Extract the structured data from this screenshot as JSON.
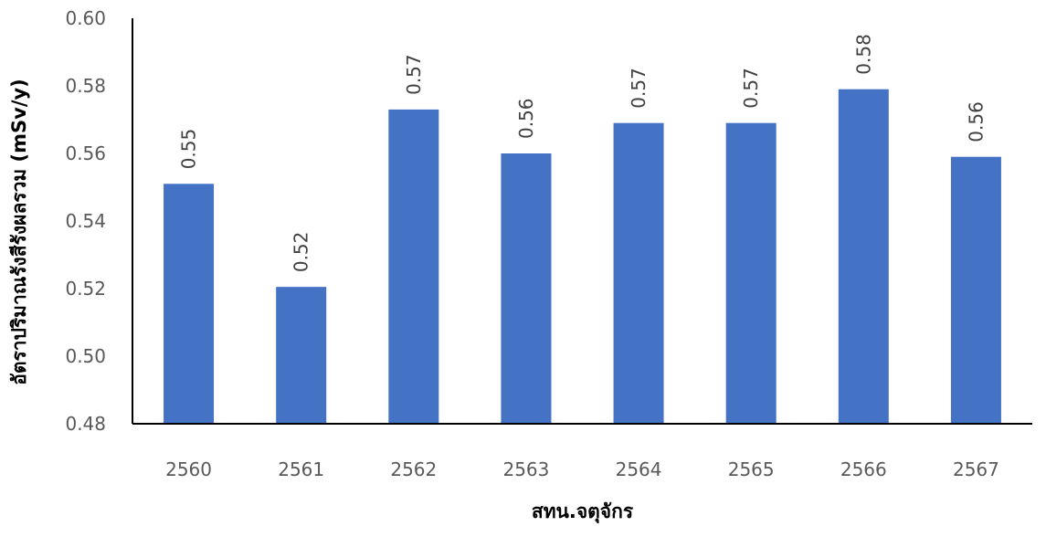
{
  "chart_data": {
    "type": "bar",
    "categories": [
      "2560",
      "2561",
      "2562",
      "2563",
      "2564",
      "2565",
      "2566",
      "2567"
    ],
    "values": [
      0.551,
      0.5205,
      0.573,
      0.56,
      0.569,
      0.569,
      0.579,
      0.559
    ],
    "data_labels": [
      "0.55",
      "0.52",
      "0.57",
      "0.56",
      "0.57",
      "0.57",
      "0.58",
      "0.56"
    ],
    "y_ticks": [
      "0.48",
      "0.50",
      "0.52",
      "0.54",
      "0.56",
      "0.58",
      "0.60"
    ],
    "ylim": [
      0.48,
      0.6
    ],
    "xlabel": "สทน.จตุจักร",
    "ylabel": "อัตราปริมาณรังสีรังผลรวม (mSv/y)",
    "title": "",
    "grid": false,
    "legend": false,
    "bar_color": "#4472C4",
    "axis_color": "#000000"
  }
}
